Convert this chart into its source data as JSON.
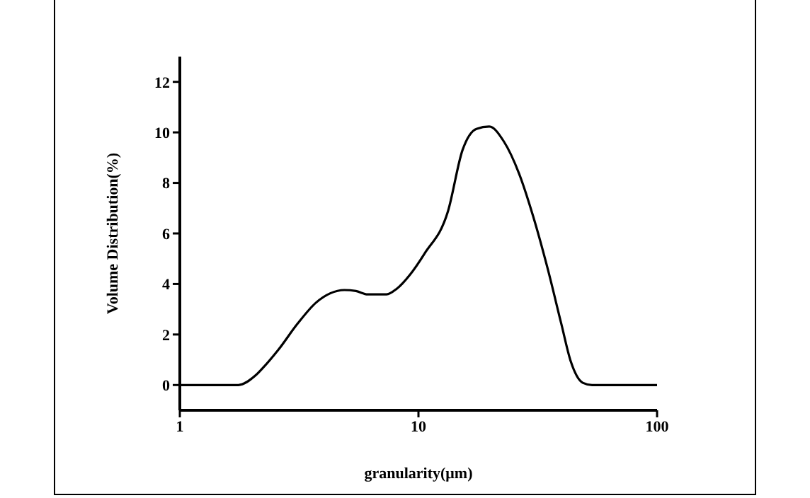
{
  "chart_data": {
    "type": "line",
    "xlabel": "granularity(μm)",
    "ylabel": "Volume Distribution(%)",
    "log": "x",
    "grid": false,
    "legend": false,
    "marker": "none",
    "line_style": "solid",
    "xlim": [
      1,
      100
    ],
    "xticks": [
      1,
      10,
      100
    ],
    "ylim": [
      -1,
      13
    ],
    "yticks": [
      0,
      2,
      4,
      6,
      8,
      10,
      12
    ],
    "x": [
      1,
      1.76,
      2.07,
      2.26,
      2.59,
      3.11,
      3.72,
      4.27,
      4.89,
      5.47,
      6.13,
      7.35,
      8.11,
      9.22,
      10.6,
      13.3,
      15.3,
      17.5,
      19.8,
      22.8,
      26.4,
      30.2,
      34.7,
      39.7,
      43.5,
      48.8,
      53.4,
      100
    ],
    "series": [
      {
        "color": "#000000",
        "values": [
          0,
          0,
          0.37,
          0.74,
          1.4,
          2.42,
          3.26,
          3.63,
          3.76,
          3.72,
          3.59,
          3.59,
          3.81,
          4.37,
          5.2,
          6.88,
          9.3,
          10.14,
          10.23,
          9.64,
          8.37,
          6.7,
          4.65,
          2.42,
          0.93,
          0.09,
          0,
          0
        ]
      }
    ]
  }
}
